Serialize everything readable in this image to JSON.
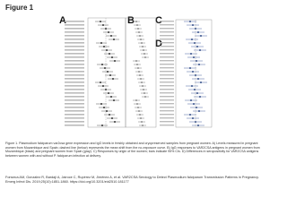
{
  "header": {
    "title": "Figure 1"
  },
  "panels": [
    {
      "label": "A"
    },
    {
      "label": "B"
    },
    {
      "label": "C"
    },
    {
      "label": "D"
    }
  ],
  "caption": "Figure 1. Plasmodium falciparum var2csa gene expression and IgG levels in freshly obtained and cryopreserved samples from pregnant women. A) Levels measured in pregnant women from Mozambique and Spain; dashed line (below) represents the mean shift from the no-exposure curve. B) IgG responses to VAR2CSA antigens in pregnant women from Mozambique (black) and pregnant women from Spain (gray). C) Responses by origin of the women; bars indicate 95% CIs. D) Differences in seropositivity for VAR2CSA antigens between women with and without P. falciparum infection at delivery.",
  "citation": "Fonseca AM, Gonzalez R, Bardaji A, Jairoce C, Rupérez M, Jiménez A, et al. VAR2CSA Serology to Detect Plasmodium falciparum Transmission Patterns in Pregnancy. Emerg Infect Dis. 2019;25(10):1851-1860. https://doi.org/10.3201/eid2510.181177"
}
